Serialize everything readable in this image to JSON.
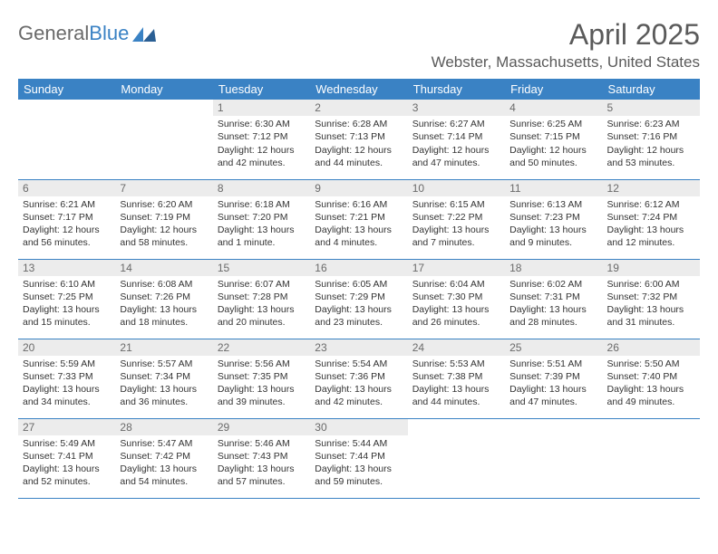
{
  "logo": {
    "word1": "General",
    "word2": "Blue"
  },
  "title": "April 2025",
  "location": "Webster, Massachusetts, United States",
  "colors": {
    "brand_blue": "#3a82c4",
    "header_text": "#5a5a5a",
    "cell_text": "#333333",
    "daynum_bg": "#ececec",
    "background": "#ffffff"
  },
  "day_headers": [
    "Sunday",
    "Monday",
    "Tuesday",
    "Wednesday",
    "Thursday",
    "Friday",
    "Saturday"
  ],
  "weeks": [
    [
      null,
      null,
      {
        "n": "1",
        "sr": "6:30 AM",
        "ss": "7:12 PM",
        "dl": "12 hours and 42 minutes."
      },
      {
        "n": "2",
        "sr": "6:28 AM",
        "ss": "7:13 PM",
        "dl": "12 hours and 44 minutes."
      },
      {
        "n": "3",
        "sr": "6:27 AM",
        "ss": "7:14 PM",
        "dl": "12 hours and 47 minutes."
      },
      {
        "n": "4",
        "sr": "6:25 AM",
        "ss": "7:15 PM",
        "dl": "12 hours and 50 minutes."
      },
      {
        "n": "5",
        "sr": "6:23 AM",
        "ss": "7:16 PM",
        "dl": "12 hours and 53 minutes."
      }
    ],
    [
      {
        "n": "6",
        "sr": "6:21 AM",
        "ss": "7:17 PM",
        "dl": "12 hours and 56 minutes."
      },
      {
        "n": "7",
        "sr": "6:20 AM",
        "ss": "7:19 PM",
        "dl": "12 hours and 58 minutes."
      },
      {
        "n": "8",
        "sr": "6:18 AM",
        "ss": "7:20 PM",
        "dl": "13 hours and 1 minute."
      },
      {
        "n": "9",
        "sr": "6:16 AM",
        "ss": "7:21 PM",
        "dl": "13 hours and 4 minutes."
      },
      {
        "n": "10",
        "sr": "6:15 AM",
        "ss": "7:22 PM",
        "dl": "13 hours and 7 minutes."
      },
      {
        "n": "11",
        "sr": "6:13 AM",
        "ss": "7:23 PM",
        "dl": "13 hours and 9 minutes."
      },
      {
        "n": "12",
        "sr": "6:12 AM",
        "ss": "7:24 PM",
        "dl": "13 hours and 12 minutes."
      }
    ],
    [
      {
        "n": "13",
        "sr": "6:10 AM",
        "ss": "7:25 PM",
        "dl": "13 hours and 15 minutes."
      },
      {
        "n": "14",
        "sr": "6:08 AM",
        "ss": "7:26 PM",
        "dl": "13 hours and 18 minutes."
      },
      {
        "n": "15",
        "sr": "6:07 AM",
        "ss": "7:28 PM",
        "dl": "13 hours and 20 minutes."
      },
      {
        "n": "16",
        "sr": "6:05 AM",
        "ss": "7:29 PM",
        "dl": "13 hours and 23 minutes."
      },
      {
        "n": "17",
        "sr": "6:04 AM",
        "ss": "7:30 PM",
        "dl": "13 hours and 26 minutes."
      },
      {
        "n": "18",
        "sr": "6:02 AM",
        "ss": "7:31 PM",
        "dl": "13 hours and 28 minutes."
      },
      {
        "n": "19",
        "sr": "6:00 AM",
        "ss": "7:32 PM",
        "dl": "13 hours and 31 minutes."
      }
    ],
    [
      {
        "n": "20",
        "sr": "5:59 AM",
        "ss": "7:33 PM",
        "dl": "13 hours and 34 minutes."
      },
      {
        "n": "21",
        "sr": "5:57 AM",
        "ss": "7:34 PM",
        "dl": "13 hours and 36 minutes."
      },
      {
        "n": "22",
        "sr": "5:56 AM",
        "ss": "7:35 PM",
        "dl": "13 hours and 39 minutes."
      },
      {
        "n": "23",
        "sr": "5:54 AM",
        "ss": "7:36 PM",
        "dl": "13 hours and 42 minutes."
      },
      {
        "n": "24",
        "sr": "5:53 AM",
        "ss": "7:38 PM",
        "dl": "13 hours and 44 minutes."
      },
      {
        "n": "25",
        "sr": "5:51 AM",
        "ss": "7:39 PM",
        "dl": "13 hours and 47 minutes."
      },
      {
        "n": "26",
        "sr": "5:50 AM",
        "ss": "7:40 PM",
        "dl": "13 hours and 49 minutes."
      }
    ],
    [
      {
        "n": "27",
        "sr": "5:49 AM",
        "ss": "7:41 PM",
        "dl": "13 hours and 52 minutes."
      },
      {
        "n": "28",
        "sr": "5:47 AM",
        "ss": "7:42 PM",
        "dl": "13 hours and 54 minutes."
      },
      {
        "n": "29",
        "sr": "5:46 AM",
        "ss": "7:43 PM",
        "dl": "13 hours and 57 minutes."
      },
      {
        "n": "30",
        "sr": "5:44 AM",
        "ss": "7:44 PM",
        "dl": "13 hours and 59 minutes."
      },
      null,
      null,
      null
    ]
  ],
  "labels": {
    "sunrise": "Sunrise:",
    "sunset": "Sunset:",
    "daylight": "Daylight:"
  }
}
